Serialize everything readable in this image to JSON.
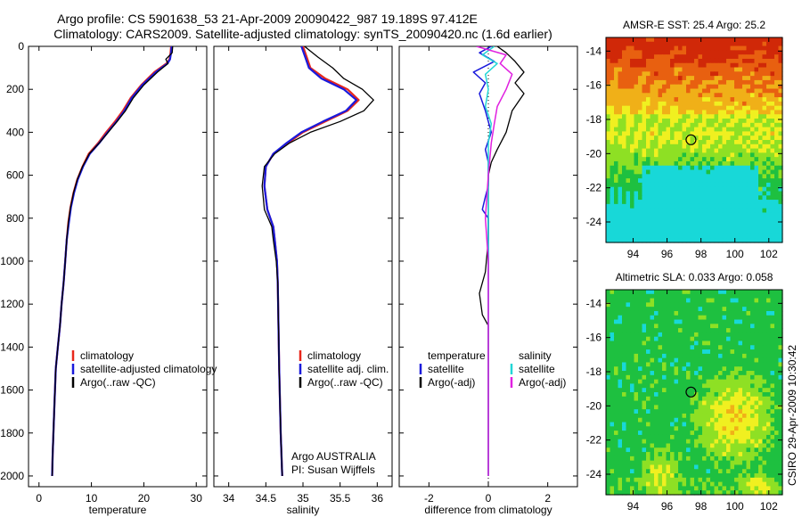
{
  "figure": {
    "title_line1": "Argo profile: CS 5901638_53 21-Apr-2009 20090422_987 19.189S 97.412E",
    "title_line2": "Climatology: CARS2009. Satellite-adjusted climatology: synTS_20090420.nc (1.6d earlier)",
    "credit": "CSIRO 29-Apr-2009 10:30:42",
    "colors": {
      "climatology": "#e8271b",
      "satellite": "#1a1adc",
      "argo": "#000000",
      "sat_salinity": "#22d6d6",
      "argo_salinity": "#e020e0"
    }
  },
  "chart_data": [
    {
      "type": "line",
      "id": "temperature",
      "xlabel": "temperature",
      "xlim": [
        -2,
        32
      ],
      "ylim": [
        2050,
        0
      ],
      "xticks": [
        0,
        10,
        20,
        30
      ],
      "yticks": [
        0,
        200,
        400,
        600,
        800,
        1000,
        1200,
        1400,
        1600,
        1800,
        2000
      ],
      "legend": [
        "climatology",
        "satellite-adjusted climatology",
        "Argo(..raw -QC)"
      ],
      "series": [
        {
          "name": "climatology",
          "color": "#e8271b",
          "width": 2.2,
          "x": [
            25.2,
            25.1,
            24.9,
            24.3,
            22.0,
            19.5,
            17.5,
            16.0,
            14.5,
            12.8,
            11.3,
            9.5,
            8.3,
            7.3,
            6.6,
            6.0,
            5.6,
            5.3,
            5.0,
            4.7,
            4.3,
            4.0,
            3.6,
            3.2,
            2.9,
            2.6,
            2.5
          ],
          "y": [
            0,
            30,
            60,
            80,
            120,
            180,
            240,
            300,
            350,
            400,
            450,
            500,
            560,
            620,
            680,
            750,
            820,
            900,
            1000,
            1100,
            1200,
            1300,
            1400,
            1500,
            1700,
            1900,
            2000
          ]
        },
        {
          "name": "satellite",
          "color": "#1a1adc",
          "width": 2.2,
          "x": [
            25.3,
            25.2,
            25.0,
            24.5,
            22.3,
            19.7,
            17.7,
            16.3,
            14.8,
            13.1,
            11.5,
            9.7,
            8.4,
            7.4,
            6.7,
            6.1,
            5.7,
            5.3,
            5.0,
            4.7,
            4.3,
            4.0,
            3.6,
            3.2,
            2.9,
            2.6,
            2.5
          ],
          "y": [
            0,
            30,
            60,
            80,
            120,
            180,
            240,
            300,
            350,
            400,
            450,
            500,
            560,
            620,
            680,
            750,
            820,
            900,
            1000,
            1100,
            1200,
            1300,
            1400,
            1500,
            1700,
            1900,
            2000
          ]
        },
        {
          "name": "Argo(..raw -QC)",
          "color": "#000000",
          "width": 1.3,
          "x": [
            25.5,
            25.4,
            24.2,
            24.6,
            22.6,
            20.0,
            18.0,
            16.5,
            14.9,
            13.2,
            11.5,
            9.6,
            8.3,
            7.3,
            6.6,
            6.0,
            5.6,
            5.3,
            5.0,
            4.7,
            4.3,
            4.0,
            3.6,
            3.2,
            2.9,
            2.6,
            2.5
          ],
          "y": [
            0,
            30,
            60,
            80,
            120,
            180,
            240,
            300,
            350,
            400,
            450,
            500,
            560,
            620,
            680,
            750,
            820,
            900,
            1000,
            1100,
            1200,
            1300,
            1400,
            1500,
            1700,
            1900,
            2000
          ]
        }
      ]
    },
    {
      "type": "line",
      "id": "salinity",
      "xlabel": "salinity",
      "xlim": [
        33.8,
        36.2
      ],
      "ylim": [
        2050,
        0
      ],
      "xticks": [
        34,
        34.5,
        35,
        35.5,
        36
      ],
      "yticks": [
        0,
        200,
        400,
        600,
        800,
        1000,
        1200,
        1400,
        1600,
        1800,
        2000
      ],
      "legend": [
        "climatology",
        "satellite adj. clim.",
        "Argo(..raw -QC)"
      ],
      "notes": [
        "Argo AUSTRALIA",
        "PI: Susan Wijffels"
      ],
      "series": [
        {
          "name": "climatology",
          "color": "#e8271b",
          "width": 2.2,
          "x": [
            35.0,
            35.05,
            35.1,
            35.3,
            35.6,
            35.75,
            35.6,
            35.3,
            35.0,
            34.8,
            34.6,
            34.5,
            34.48,
            34.52,
            34.6,
            34.62,
            34.65,
            34.66,
            34.67,
            34.68,
            34.7,
            34.72
          ],
          "y": [
            0,
            50,
            100,
            150,
            200,
            250,
            300,
            350,
            400,
            450,
            500,
            560,
            650,
            760,
            840,
            900,
            1000,
            1100,
            1300,
            1500,
            1800,
            2000
          ]
        },
        {
          "name": "satellite adj. clim.",
          "color": "#1a1adc",
          "width": 2.2,
          "x": [
            34.98,
            35.03,
            35.08,
            35.25,
            35.55,
            35.72,
            35.58,
            35.27,
            34.98,
            34.78,
            34.6,
            34.5,
            34.48,
            34.52,
            34.6,
            34.62,
            34.65,
            34.66,
            34.67,
            34.68,
            34.7,
            34.72
          ],
          "y": [
            0,
            50,
            100,
            150,
            200,
            250,
            300,
            350,
            400,
            450,
            500,
            560,
            650,
            760,
            840,
            900,
            1000,
            1100,
            1300,
            1500,
            1800,
            2000
          ]
        },
        {
          "name": "Argo(..raw -QC)",
          "color": "#000000",
          "width": 1.3,
          "x": [
            35.02,
            35.2,
            35.4,
            35.55,
            35.8,
            35.95,
            35.82,
            35.5,
            35.1,
            34.82,
            34.62,
            34.48,
            34.45,
            34.48,
            34.58,
            34.6,
            34.64,
            34.66,
            34.67,
            34.68,
            34.7,
            34.72
          ],
          "y": [
            0,
            50,
            100,
            150,
            200,
            250,
            300,
            350,
            400,
            450,
            500,
            560,
            650,
            760,
            840,
            900,
            1000,
            1100,
            1300,
            1500,
            1800,
            2000
          ]
        }
      ]
    },
    {
      "type": "line",
      "id": "difference",
      "xlabel": "difference from climatology",
      "xlim": [
        -3,
        3
      ],
      "ylim": [
        2050,
        0
      ],
      "xticks": [
        -2,
        0,
        2
      ],
      "yticks": [
        0,
        200,
        400,
        600,
        800,
        1000,
        1200,
        1400,
        1600,
        1800,
        2000
      ],
      "legend_left": [
        "temperature",
        "satellite",
        "Argo(-adj)"
      ],
      "legend_right": [
        "salinity",
        "satellite",
        "Argo(-adj)"
      ],
      "series": [
        {
          "name": "temperature satellite",
          "color": "#1a1adc",
          "width": 1.5,
          "x": [
            0.1,
            -0.3,
            0.2,
            -0.5,
            -0.1,
            -0.3,
            -0.1,
            0.1,
            -0.1,
            0.0,
            0.0,
            0.0,
            -0.1,
            -0.2,
            0.0,
            0.0,
            0.0,
            0.0,
            0.0,
            0.0,
            0.0
          ],
          "y": [
            0,
            30,
            70,
            120,
            170,
            220,
            300,
            400,
            480,
            540,
            600,
            650,
            700,
            760,
            800,
            1000,
            1200,
            1400,
            1600,
            1800,
            2000
          ]
        },
        {
          "name": "temperature Argo(-adj)",
          "color": "#000000",
          "width": 1.3,
          "x": [
            0.3,
            0.6,
            0.9,
            1.2,
            0.9,
            1.2,
            0.8,
            0.6,
            0.3,
            0.1,
            0.0,
            0.0,
            0.0,
            -0.1,
            -0.3,
            -0.2,
            0.0,
            0.0,
            0.0,
            0.0,
            0.0
          ],
          "y": [
            0,
            30,
            70,
            120,
            170,
            220,
            300,
            400,
            480,
            540,
            600,
            700,
            900,
            1050,
            1150,
            1250,
            1300,
            1400,
            1600,
            1800,
            2000
          ]
        },
        {
          "name": "salinity satellite",
          "color": "#22d6d6",
          "width": 1.5,
          "x": [
            0.2,
            -0.2,
            0.3,
            -0.1,
            0.0,
            -0.1,
            0.1,
            0.0,
            0.0,
            0.0,
            0.0,
            0.0,
            0.0,
            0.0
          ],
          "y": [
            0,
            40,
            80,
            130,
            200,
            280,
            360,
            450,
            600,
            800,
            1000,
            1400,
            1800,
            2000
          ]
        },
        {
          "name": "salinity Argo(-adj)",
          "color": "#e020e0",
          "width": 1.5,
          "x": [
            -0.4,
            0.6,
            0.4,
            0.8,
            0.6,
            0.3,
            0.2,
            0.1,
            0.0,
            -0.1,
            0.0,
            0.0,
            0.0,
            0.0
          ],
          "y": [
            0,
            40,
            80,
            130,
            200,
            280,
            360,
            450,
            600,
            800,
            1000,
            1400,
            1800,
            2000
          ]
        }
      ]
    },
    {
      "type": "heatmap",
      "id": "sst-map",
      "title": "AMSR-E SST: 25.4 Argo: 25.2",
      "xlim": [
        92.4,
        102.8
      ],
      "ylim": [
        -25.2,
        -13.2
      ],
      "xticks": [
        94,
        96,
        98,
        100,
        102
      ],
      "yticks": [
        -14,
        -16,
        -18,
        -20,
        -22,
        -24
      ],
      "marker": {
        "lon": 97.412,
        "lat": -19.189
      },
      "colorscale": [
        "#18d8d8",
        "#1ec040",
        "#8ee024",
        "#f0f020",
        "#f0b018",
        "#e86010",
        "#d02808"
      ]
    },
    {
      "type": "heatmap",
      "id": "sla-map",
      "title": "Altimetric SLA: 0.033 Argo: 0.058",
      "xlim": [
        92.4,
        102.8
      ],
      "ylim": [
        -25.2,
        -13.2
      ],
      "xticks": [
        94,
        96,
        98,
        100,
        102
      ],
      "yticks": [
        -14,
        -16,
        -18,
        -20,
        -22,
        -24
      ],
      "marker": {
        "lon": 97.412,
        "lat": -19.189
      },
      "colorscale": [
        "#18d8d8",
        "#1ec040",
        "#8ee024",
        "#f0f020",
        "#f0b018",
        "#e86010"
      ]
    }
  ]
}
